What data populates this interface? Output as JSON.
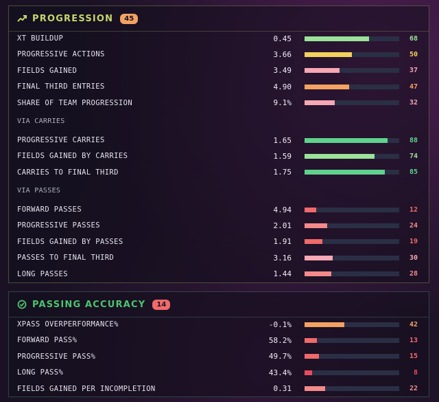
{
  "progression": {
    "title": "PROGRESSION",
    "badge": "45",
    "accent": "#c6d66a",
    "badge_color": "#f4a261",
    "groups": [
      {
        "heading": "",
        "rows": [
          {
            "label": "XT BUILDUP",
            "value": "0.45",
            "pct": 68,
            "pct_text": "68",
            "color": "#9be29a"
          },
          {
            "label": "PROGRESSIVE ACTIONS",
            "value": "3.66",
            "pct": 50,
            "pct_text": "50",
            "color": "#f2d15c"
          },
          {
            "label": "FIELDS GAINED",
            "value": "3.49",
            "pct": 37,
            "pct_text": "37",
            "color": "#f6a8b4"
          },
          {
            "label": "FINAL THIRD ENTRIES",
            "value": "4.90",
            "pct": 47,
            "pct_text": "47",
            "color": "#f4a261"
          },
          {
            "label": "SHARE OF TEAM PROGRESSION",
            "value": "9.1%",
            "pct": 32,
            "pct_text": "32",
            "color": "#f6a8b4"
          }
        ]
      },
      {
        "heading": "VIA CARRIES",
        "rows": [
          {
            "label": "PROGRESSIVE CARRIES",
            "value": "1.65",
            "pct": 88,
            "pct_text": "88",
            "color": "#5fd38d"
          },
          {
            "label": "FIELDS GAINED BY CARRIES",
            "value": "1.59",
            "pct": 74,
            "pct_text": "74",
            "color": "#9be29a"
          },
          {
            "label": "CARRIES TO FINAL THIRD",
            "value": "1.75",
            "pct": 85,
            "pct_text": "85",
            "color": "#5fd38d"
          }
        ]
      },
      {
        "heading": "VIA PASSES",
        "rows": [
          {
            "label": "FORWARD PASSES",
            "value": "4.94",
            "pct": 12,
            "pct_text": "12",
            "color": "#f06a6a"
          },
          {
            "label": "PROGRESSIVE PASSES",
            "value": "2.01",
            "pct": 24,
            "pct_text": "24",
            "color": "#f48a8a"
          },
          {
            "label": "FIELDS GAINED BY PASSES",
            "value": "1.91",
            "pct": 19,
            "pct_text": "19",
            "color": "#f06a6a"
          },
          {
            "label": "PASSES TO FINAL THIRD",
            "value": "3.16",
            "pct": 30,
            "pct_text": "30",
            "color": "#f6a8b4"
          },
          {
            "label": "LONG PASSES",
            "value": "1.44",
            "pct": 28,
            "pct_text": "28",
            "color": "#f48a8a"
          }
        ]
      }
    ]
  },
  "passing": {
    "title": "PASSING ACCURACY",
    "badge": "14",
    "accent": "#4cc46e",
    "badge_color": "#f06a6a",
    "rows": [
      {
        "label": "XPASS OVERPERFORMANCE%",
        "value": "-0.1%",
        "pct": 42,
        "pct_text": "42",
        "color": "#f4a261"
      },
      {
        "label": "FORWARD PASS%",
        "value": "58.2%",
        "pct": 13,
        "pct_text": "13",
        "color": "#f06a6a"
      },
      {
        "label": "PROGRESSIVE PASS%",
        "value": "49.7%",
        "pct": 15,
        "pct_text": "15",
        "color": "#f06a6a"
      },
      {
        "label": "LONG PASS%",
        "value": "43.4%",
        "pct": 8,
        "pct_text": "8",
        "color": "#e84c5c"
      },
      {
        "label": "FIELDS GAINED PER INCOMPLETION",
        "value": "0.31",
        "pct": 22,
        "pct_text": "22",
        "color": "#f48a8a"
      }
    ]
  }
}
